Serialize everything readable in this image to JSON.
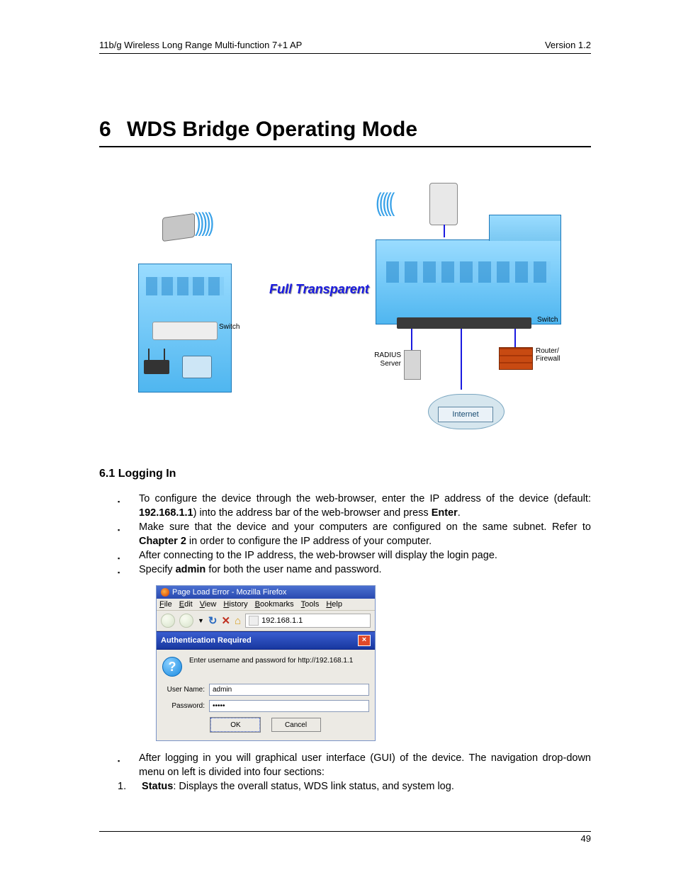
{
  "header": {
    "left": "11b/g Wireless Long Range Multi-function 7+1 AP",
    "right": "Version 1.2"
  },
  "chapter": {
    "number": "6",
    "title": "WDS Bridge Operating Mode"
  },
  "diagram": {
    "center_label": "Full Transparent",
    "left": {
      "wave": ")))))",
      "switch_label": "Switch"
    },
    "right": {
      "wave": "(((((",
      "switch_label": "Switch",
      "radius_label": "RADIUS\nServer",
      "firewall_label": "Router/\nFirewall",
      "internet_label": "Internet"
    }
  },
  "section": {
    "number": "6.1",
    "title": "Logging In"
  },
  "bullets_a": [
    {
      "pre": "To configure the device through the web-browser, enter the IP address of the device (default: ",
      "b1": "192.168.1.1",
      "mid1": ") into the address bar of the web-browser and press ",
      "b2": "Enter",
      "post": "."
    },
    {
      "pre": "Make sure that the device and your computers are configured on the same subnet. Refer to ",
      "b1": "Chapter 2",
      "post": " in order to configure the IP address of your computer."
    },
    {
      "text": "After connecting to the IP address, the web-browser will display the login page."
    },
    {
      "pre": "Specify ",
      "b1": "admin",
      "post": " for both the user name and password."
    }
  ],
  "firefox": {
    "window_title": "Page Load Error - Mozilla Firefox",
    "menu": [
      "File",
      "Edit",
      "View",
      "History",
      "Bookmarks",
      "Tools",
      "Help"
    ],
    "address": "192.168.1.1",
    "auth_title": "Authentication Required",
    "prompt": "Enter username and password for http://192.168.1.1",
    "username_label": "User Name:",
    "password_label": "Password:",
    "username_value": "admin",
    "password_value": "•••••",
    "ok_label": "OK",
    "cancel_label": "Cancel"
  },
  "bullets_b": [
    {
      "text": "After logging in you will graphical user interface (GUI) of the device. The navigation drop-down menu on left is divided into four sections:"
    }
  ],
  "numbered": {
    "n": "1.",
    "b": "Status",
    "rest": ": Displays the overall status, WDS link status, and system log."
  },
  "footer": {
    "page": "49"
  }
}
